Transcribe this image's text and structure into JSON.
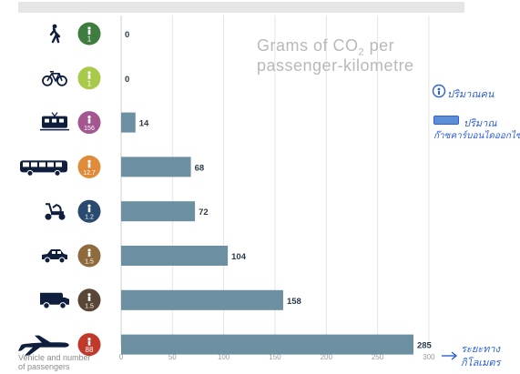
{
  "chart_data": {
    "type": "bar",
    "orientation": "horizontal",
    "title_line1": "Grams of CO",
    "title_sub": "2",
    "title_rest": " per",
    "title_line2": "passenger-kilometre",
    "ylabel_line1": "Vehicle and number",
    "ylabel_line2": "of passengers",
    "xlim": [
      0,
      300
    ],
    "ticks": [
      0,
      50,
      100,
      150,
      200,
      250,
      300
    ],
    "grid": true,
    "bar_color": "#6d8fa2",
    "categories": [
      {
        "icon": "walking-person-icon",
        "passengers": "1",
        "color": "#3f7d3f",
        "value": 0
      },
      {
        "icon": "bicycle-icon",
        "passengers": "1",
        "color": "#a9c94a",
        "value": 0
      },
      {
        "icon": "tram-icon",
        "passengers": "156",
        "color": "#a3568f",
        "value": 14
      },
      {
        "icon": "bus-icon",
        "passengers": "12.7",
        "color": "#e08b3a",
        "value": 68
      },
      {
        "icon": "scooter-icon",
        "passengers": "1.2",
        "color": "#2b4a70",
        "value": 72
      },
      {
        "icon": "car-icon",
        "passengers": "1.5",
        "color": "#8e6a3c",
        "value": 104
      },
      {
        "icon": "van-icon",
        "passengers": "1.5",
        "color": "#5a4636",
        "value": 158
      },
      {
        "icon": "airplane-icon",
        "passengers": "88",
        "color": "#c0392b",
        "value": 285
      }
    ]
  },
  "annotations": {
    "legend_passengers": "ปริมาณคน",
    "legend_co2_line1": "ปริมาณ",
    "legend_co2_line2": "ก๊าซคาร์บอนไดออกไซด์",
    "axis_line1": "ระยะทาง",
    "axis_line2": "กิโลเมตร"
  }
}
